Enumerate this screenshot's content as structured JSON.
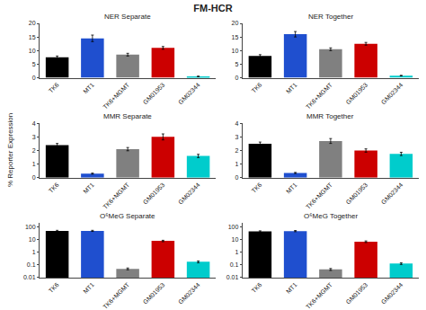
{
  "title": "FM-HCR",
  "ylabel": "% Reporter Expression",
  "chart_data": [
    {
      "type": "bar",
      "title": "NER Separate",
      "categories": [
        "TK6",
        "MT1",
        "TK6+MGMT",
        "GM01953",
        "GM02344"
      ],
      "values": [
        7.5,
        14.5,
        8.5,
        11.0,
        0.5
      ],
      "errors": [
        0.5,
        1.2,
        0.5,
        0.5,
        0.1
      ],
      "colors": [
        "#000000",
        "#1f4fcf",
        "#808080",
        "#cc0000",
        "#00cccc"
      ],
      "ylim": [
        0,
        20
      ],
      "yticks": [
        0,
        5,
        10,
        15,
        20
      ],
      "grid": false
    },
    {
      "type": "bar",
      "title": "NER Together",
      "categories": [
        "TK6",
        "MT1",
        "TK6+MGMT",
        "GM01953",
        "GM02344"
      ],
      "values": [
        8.0,
        16.0,
        10.5,
        12.5,
        0.8
      ],
      "errors": [
        0.5,
        1.0,
        0.5,
        0.5,
        0.1
      ],
      "colors": [
        "#000000",
        "#1f4fcf",
        "#808080",
        "#cc0000",
        "#00cccc"
      ],
      "ylim": [
        0,
        20
      ],
      "yticks": [
        0,
        5,
        10,
        15,
        20
      ],
      "grid": false
    },
    {
      "type": "bar",
      "title": "MMR Separate",
      "categories": [
        "TK6",
        "MT1",
        "TK6+MGMT",
        "GM01953",
        "GM02344"
      ],
      "values": [
        2.4,
        0.3,
        2.1,
        3.0,
        1.6
      ],
      "errors": [
        0.12,
        0.04,
        0.12,
        0.22,
        0.12
      ],
      "colors": [
        "#000000",
        "#1f4fcf",
        "#808080",
        "#cc0000",
        "#00cccc"
      ],
      "ylim": [
        0,
        4
      ],
      "yticks": [
        0,
        1,
        2,
        3,
        4
      ],
      "grid": false
    },
    {
      "type": "bar",
      "title": "MMR Together",
      "categories": [
        "TK6",
        "MT1",
        "TK6+MGMT",
        "GM01953",
        "GM02344"
      ],
      "values": [
        2.5,
        0.35,
        2.7,
        2.0,
        1.75
      ],
      "errors": [
        0.12,
        0.04,
        0.18,
        0.12,
        0.12
      ],
      "colors": [
        "#000000",
        "#1f4fcf",
        "#808080",
        "#cc0000",
        "#00cccc"
      ],
      "ylim": [
        0,
        4
      ],
      "yticks": [
        0,
        1,
        2,
        3,
        4
      ],
      "grid": false
    },
    {
      "type": "bar",
      "title": "O⁶MeG Separate",
      "categories": [
        "TK6",
        "MT1",
        "TK6+MGMT",
        "GM01953",
        "GM02344"
      ],
      "values": [
        50,
        50,
        0.05,
        8.0,
        0.18
      ],
      "errors": [
        5,
        5,
        0.008,
        1.0,
        0.03
      ],
      "colors": [
        "#000000",
        "#1f4fcf",
        "#808080",
        "#cc0000",
        "#00cccc"
      ],
      "log": "y",
      "ylim": [
        0.01,
        200
      ],
      "yticks": [
        0.01,
        0.1,
        1,
        10,
        100
      ],
      "grid": false
    },
    {
      "type": "bar",
      "title": "O⁶MeG Together",
      "categories": [
        "TK6",
        "MT1",
        "TK6+MGMT",
        "GM01953",
        "GM02344"
      ],
      "values": [
        45,
        48,
        0.045,
        7.0,
        0.13
      ],
      "errors": [
        5,
        5,
        0.008,
        1.0,
        0.02
      ],
      "colors": [
        "#000000",
        "#1f4fcf",
        "#808080",
        "#cc0000",
        "#00cccc"
      ],
      "log": "y",
      "ylim": [
        0.01,
        200
      ],
      "yticks": [
        0.01,
        0.1,
        1,
        10,
        100
      ],
      "grid": false
    }
  ]
}
